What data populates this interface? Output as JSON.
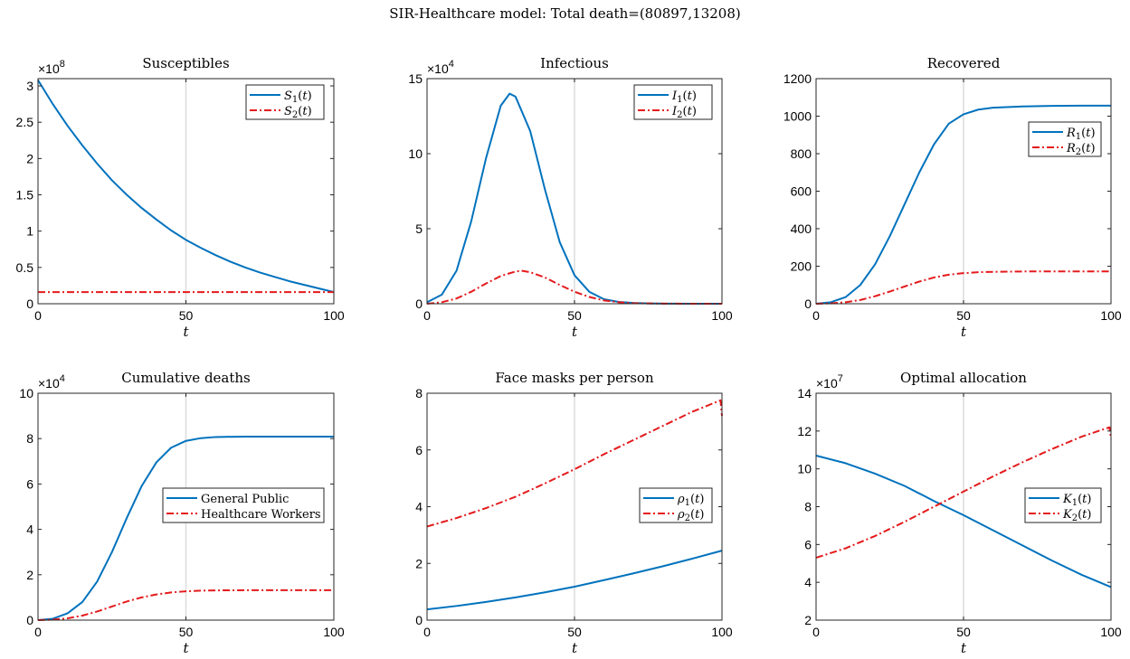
{
  "suptitle": "SIR-Healthcare model: Total death=(80897,13208)",
  "colors": {
    "series1": "#0072BD",
    "series2": "#E41A1C"
  },
  "chart_data": [
    {
      "type": "line",
      "title": "Susceptibles",
      "xlabel": "t",
      "ylabel": "",
      "xlim": [
        0,
        100
      ],
      "ylim": [
        0,
        3.1
      ],
      "yscale_label": "× 10^8",
      "xticks": [
        0,
        50,
        100
      ],
      "yticks": [
        0,
        0.5,
        1,
        1.5,
        2,
        2.5,
        3
      ],
      "ytick_labels": [
        "0",
        "0.5",
        "1",
        "1.5",
        "2",
        "2.5",
        "3"
      ],
      "grid": true,
      "legend_position": "top-right",
      "series": [
        {
          "name": "S1(t)",
          "x": [
            0,
            5,
            10,
            15,
            20,
            25,
            30,
            35,
            40,
            45,
            50,
            55,
            60,
            65,
            70,
            75,
            80,
            85,
            90,
            95,
            100
          ],
          "y": [
            3.08,
            2.75,
            2.45,
            2.18,
            1.93,
            1.7,
            1.5,
            1.32,
            1.16,
            1.01,
            0.88,
            0.77,
            0.67,
            0.58,
            0.5,
            0.43,
            0.37,
            0.31,
            0.26,
            0.21,
            0.16
          ]
        },
        {
          "name": "S2(t)",
          "x": [
            0,
            25,
            50,
            75,
            100
          ],
          "y": [
            0.16,
            0.16,
            0.16,
            0.16,
            0.16
          ]
        }
      ]
    },
    {
      "type": "line",
      "title": "Infectious",
      "xlabel": "t",
      "ylabel": "",
      "xlim": [
        0,
        100
      ],
      "ylim": [
        0,
        15
      ],
      "yscale_label": "× 10^4",
      "xticks": [
        0,
        50,
        100
      ],
      "yticks": [
        0,
        5,
        10,
        15
      ],
      "ytick_labels": [
        "0",
        "5",
        "10",
        "15"
      ],
      "grid": true,
      "legend_position": "top-right",
      "series": [
        {
          "name": "I1(t)",
          "x": [
            0,
            5,
            10,
            15,
            20,
            25,
            28,
            30,
            35,
            40,
            45,
            50,
            55,
            60,
            65,
            70,
            75,
            80,
            90,
            100
          ],
          "y": [
            0.1,
            0.6,
            2.2,
            5.5,
            9.7,
            13.2,
            14.0,
            13.8,
            11.5,
            7.6,
            4.1,
            1.9,
            0.8,
            0.3,
            0.12,
            0.05,
            0.02,
            0.01,
            0,
            0
          ]
        },
        {
          "name": "I2(t)",
          "x": [
            0,
            5,
            10,
            15,
            20,
            25,
            30,
            32,
            35,
            40,
            45,
            50,
            55,
            60,
            65,
            70,
            75,
            80,
            90,
            100
          ],
          "y": [
            0,
            0.1,
            0.35,
            0.8,
            1.35,
            1.85,
            2.15,
            2.2,
            2.1,
            1.75,
            1.25,
            0.8,
            0.45,
            0.22,
            0.1,
            0.04,
            0.02,
            0.01,
            0,
            0
          ]
        }
      ]
    },
    {
      "type": "line",
      "title": "Recovered",
      "xlabel": "t",
      "ylabel": "",
      "xlim": [
        0,
        100
      ],
      "ylim": [
        0,
        1200
      ],
      "yscale_label": "",
      "xticks": [
        0,
        50,
        100
      ],
      "yticks": [
        0,
        200,
        400,
        600,
        800,
        1000,
        1200
      ],
      "ytick_labels": [
        "0",
        "200",
        "400",
        "600",
        "800",
        "1000",
        "1200"
      ],
      "grid": true,
      "legend_position": "upper-right",
      "series": [
        {
          "name": "R1(t)",
          "x": [
            0,
            5,
            10,
            15,
            20,
            25,
            30,
            35,
            40,
            45,
            50,
            55,
            60,
            70,
            80,
            90,
            100
          ],
          "y": [
            0,
            8,
            35,
            100,
            210,
            360,
            530,
            700,
            850,
            960,
            1010,
            1035,
            1045,
            1052,
            1055,
            1056,
            1056
          ]
        },
        {
          "name": "R2(t)",
          "x": [
            0,
            5,
            10,
            15,
            20,
            25,
            30,
            35,
            40,
            45,
            50,
            55,
            60,
            70,
            80,
            90,
            100
          ],
          "y": [
            0,
            2,
            8,
            20,
            40,
            65,
            92,
            118,
            140,
            155,
            163,
            168,
            170,
            172,
            172,
            172,
            172
          ]
        }
      ]
    },
    {
      "type": "line",
      "title": "Cumulative deaths",
      "xlabel": "t",
      "ylabel": "",
      "xlim": [
        0,
        100
      ],
      "ylim": [
        0,
        10
      ],
      "yscale_label": "× 10^4",
      "xticks": [
        0,
        50,
        100
      ],
      "yticks": [
        0,
        2,
        4,
        6,
        8,
        10
      ],
      "ytick_labels": [
        "0",
        "2",
        "4",
        "6",
        "8",
        "10"
      ],
      "grid": true,
      "legend_position": "middle-right",
      "series": [
        {
          "name": "General Public",
          "x": [
            0,
            5,
            10,
            15,
            20,
            25,
            30,
            35,
            40,
            45,
            50,
            55,
            60,
            70,
            80,
            90,
            100
          ],
          "y": [
            0,
            0.06,
            0.3,
            0.8,
            1.7,
            3.0,
            4.5,
            5.9,
            6.95,
            7.6,
            7.9,
            8.02,
            8.07,
            8.09,
            8.09,
            8.09,
            8.09
          ]
        },
        {
          "name": "Healthcare Workers",
          "x": [
            0,
            5,
            10,
            15,
            20,
            25,
            30,
            35,
            40,
            45,
            50,
            55,
            60,
            70,
            80,
            90,
            100
          ],
          "y": [
            0,
            0.02,
            0.08,
            0.2,
            0.38,
            0.6,
            0.82,
            1.0,
            1.13,
            1.22,
            1.27,
            1.3,
            1.31,
            1.32,
            1.32,
            1.32,
            1.32
          ]
        }
      ]
    },
    {
      "type": "line",
      "title": "Face masks per person",
      "xlabel": "t",
      "ylabel": "",
      "xlim": [
        0,
        100
      ],
      "ylim": [
        0,
        8
      ],
      "yscale_label": "",
      "xticks": [
        0,
        50,
        100
      ],
      "yticks": [
        0,
        2,
        4,
        6,
        8
      ],
      "ytick_labels": [
        "0",
        "2",
        "4",
        "6",
        "8"
      ],
      "grid": true,
      "legend_position": "middle-right",
      "series": [
        {
          "name": "ρ1(t)",
          "x": [
            0,
            10,
            20,
            30,
            40,
            50,
            60,
            70,
            80,
            90,
            100
          ],
          "y": [
            0.38,
            0.5,
            0.64,
            0.8,
            0.98,
            1.18,
            1.41,
            1.65,
            1.9,
            2.17,
            2.45
          ]
        },
        {
          "name": "ρ2(t)",
          "x": [
            0,
            10,
            20,
            30,
            40,
            50,
            60,
            70,
            80,
            90,
            99.5,
            100
          ],
          "y": [
            3.3,
            3.6,
            3.95,
            4.35,
            4.82,
            5.32,
            5.85,
            6.35,
            6.85,
            7.35,
            7.75,
            7.2
          ]
        }
      ]
    },
    {
      "type": "line",
      "title": "Optimal allocation",
      "xlabel": "t",
      "ylabel": "",
      "xlim": [
        0,
        100
      ],
      "ylim": [
        2,
        14
      ],
      "yscale_label": "× 10^7",
      "xticks": [
        0,
        50,
        100
      ],
      "yticks": [
        2,
        4,
        6,
        8,
        10,
        12,
        14
      ],
      "ytick_labels": [
        "2",
        "4",
        "6",
        "8",
        "10",
        "12",
        "14"
      ],
      "grid": true,
      "legend_position": "middle-right",
      "series": [
        {
          "name": "K1(t)",
          "x": [
            0,
            10,
            20,
            30,
            40,
            50,
            60,
            70,
            80,
            90,
            100
          ],
          "y": [
            10.7,
            10.3,
            9.75,
            9.1,
            8.3,
            7.55,
            6.75,
            5.95,
            5.15,
            4.4,
            3.75
          ]
        },
        {
          "name": "K2(t)",
          "x": [
            0,
            10,
            20,
            30,
            40,
            50,
            60,
            70,
            80,
            90,
            99.5,
            100
          ],
          "y": [
            5.3,
            5.8,
            6.45,
            7.2,
            8.0,
            8.8,
            9.6,
            10.35,
            11.05,
            11.7,
            12.2,
            11.6
          ]
        }
      ]
    }
  ]
}
